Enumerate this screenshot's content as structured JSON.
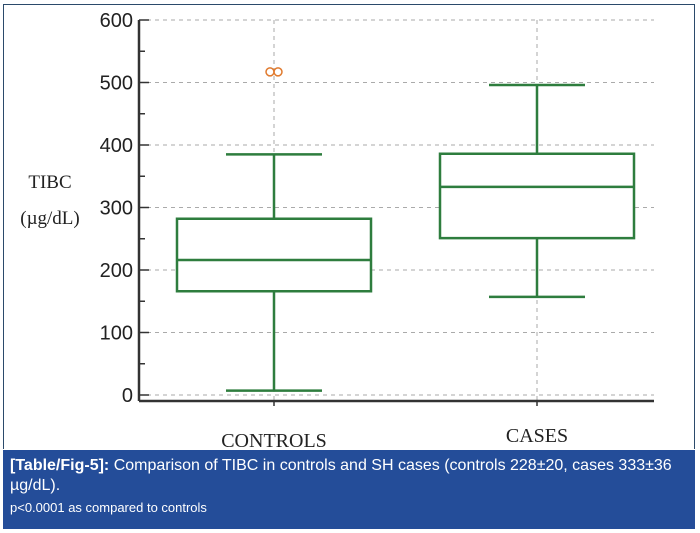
{
  "chart_data": {
    "type": "box",
    "title": "",
    "ylabel_lines": [
      "TIBC",
      "(µg/dL)"
    ],
    "xlabel": "",
    "ylim": [
      0,
      600
    ],
    "yticks": [
      0,
      100,
      200,
      300,
      400,
      500,
      600
    ],
    "grid": true,
    "categories": [
      "CONTROLS",
      "CASES"
    ],
    "series": [
      {
        "name": "CONTROLS",
        "whisker_low": 7,
        "q1": 166,
        "median": 216,
        "q3": 282,
        "whisker_high": 385,
        "outliers": [
          517,
          517
        ]
      },
      {
        "name": "CASES",
        "whisker_low": 157,
        "q1": 251,
        "median": 333,
        "q3": 386,
        "whisker_high": 496,
        "outliers": []
      }
    ],
    "colors": {
      "box": "#2e7d3e",
      "outlier": "#e07a2e",
      "grid": "#aaaaaa",
      "axis": "#333333"
    }
  },
  "caption": {
    "tag": "[Table/Fig-5]:",
    "text": " Comparison of TIBC in controls and SH cases (controls 228±20, cases 333±36 µg/dL).",
    "note": "p<0.0001 as compared to controls"
  }
}
